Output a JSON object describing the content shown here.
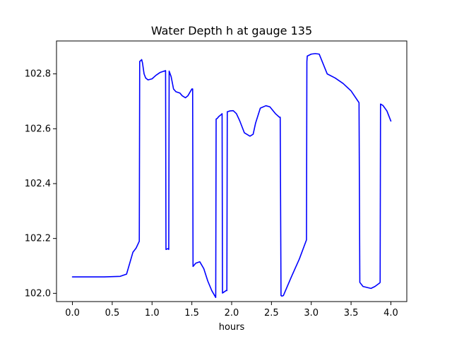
{
  "chart_data": {
    "type": "line",
    "title": "Water Depth h at gauge 135",
    "xlabel": "hours",
    "ylabel": "",
    "xlim": [
      -0.2,
      4.2
    ],
    "ylim": [
      101.97,
      102.92
    ],
    "xticks": [
      0.0,
      0.5,
      1.0,
      1.5,
      2.0,
      2.5,
      3.0,
      3.5,
      4.0
    ],
    "xtick_labels": [
      "0.0",
      "0.5",
      "1.0",
      "1.5",
      "2.0",
      "2.5",
      "3.0",
      "3.5",
      "4.0"
    ],
    "yticks": [
      102.0,
      102.2,
      102.4,
      102.6,
      102.8
    ],
    "ytick_labels": [
      "102.0",
      "102.2",
      "102.4",
      "102.6",
      "102.8"
    ],
    "grid": false,
    "series": [
      {
        "color": "#0000ff",
        "x": [
          0.0,
          0.2,
          0.4,
          0.6,
          0.68,
          0.72,
          0.76,
          0.8,
          0.84,
          0.845,
          0.87,
          0.88,
          0.9,
          0.92,
          0.95,
          1.0,
          1.05,
          1.1,
          1.15,
          1.17,
          1.175,
          1.2,
          1.21,
          1.215,
          1.24,
          1.27,
          1.3,
          1.35,
          1.38,
          1.42,
          1.45,
          1.5,
          1.51,
          1.515,
          1.55,
          1.6,
          1.65,
          1.7,
          1.75,
          1.8,
          1.805,
          1.82,
          1.84,
          1.87,
          1.88,
          1.885,
          1.93,
          1.94,
          1.945,
          1.98,
          2.02,
          2.06,
          2.1,
          2.16,
          2.23,
          2.27,
          2.3,
          2.36,
          2.43,
          2.48,
          2.55,
          2.6,
          2.61,
          2.62,
          2.63,
          2.65,
          2.75,
          2.85,
          2.94,
          2.945,
          2.95,
          3.0,
          3.05,
          3.1,
          3.2,
          3.3,
          3.4,
          3.5,
          3.6,
          3.61,
          3.65,
          3.75,
          3.8,
          3.86,
          3.865,
          3.87,
          3.9,
          3.95,
          4.0
        ],
        "y": [
          102.06,
          102.06,
          102.06,
          102.062,
          102.07,
          102.11,
          102.15,
          102.165,
          102.19,
          102.845,
          102.852,
          102.84,
          102.8,
          102.785,
          102.778,
          102.782,
          102.795,
          102.805,
          102.81,
          102.812,
          102.16,
          102.163,
          102.16,
          102.81,
          102.79,
          102.745,
          102.735,
          102.73,
          102.72,
          102.713,
          102.72,
          102.745,
          102.745,
          102.098,
          102.11,
          102.115,
          102.09,
          102.045,
          102.01,
          101.985,
          102.635,
          102.638,
          102.645,
          102.652,
          102.655,
          102.001,
          102.01,
          102.01,
          102.662,
          102.665,
          102.666,
          102.655,
          102.63,
          102.585,
          102.573,
          102.58,
          102.62,
          102.675,
          102.684,
          102.68,
          102.655,
          102.642,
          102.642,
          101.992,
          101.99,
          101.992,
          102.06,
          102.125,
          102.195,
          102.845,
          102.865,
          102.872,
          102.874,
          102.872,
          102.8,
          102.785,
          102.765,
          102.738,
          102.695,
          102.04,
          102.025,
          102.018,
          102.025,
          102.038,
          102.04,
          102.69,
          102.685,
          102.665,
          102.628
        ]
      }
    ]
  }
}
